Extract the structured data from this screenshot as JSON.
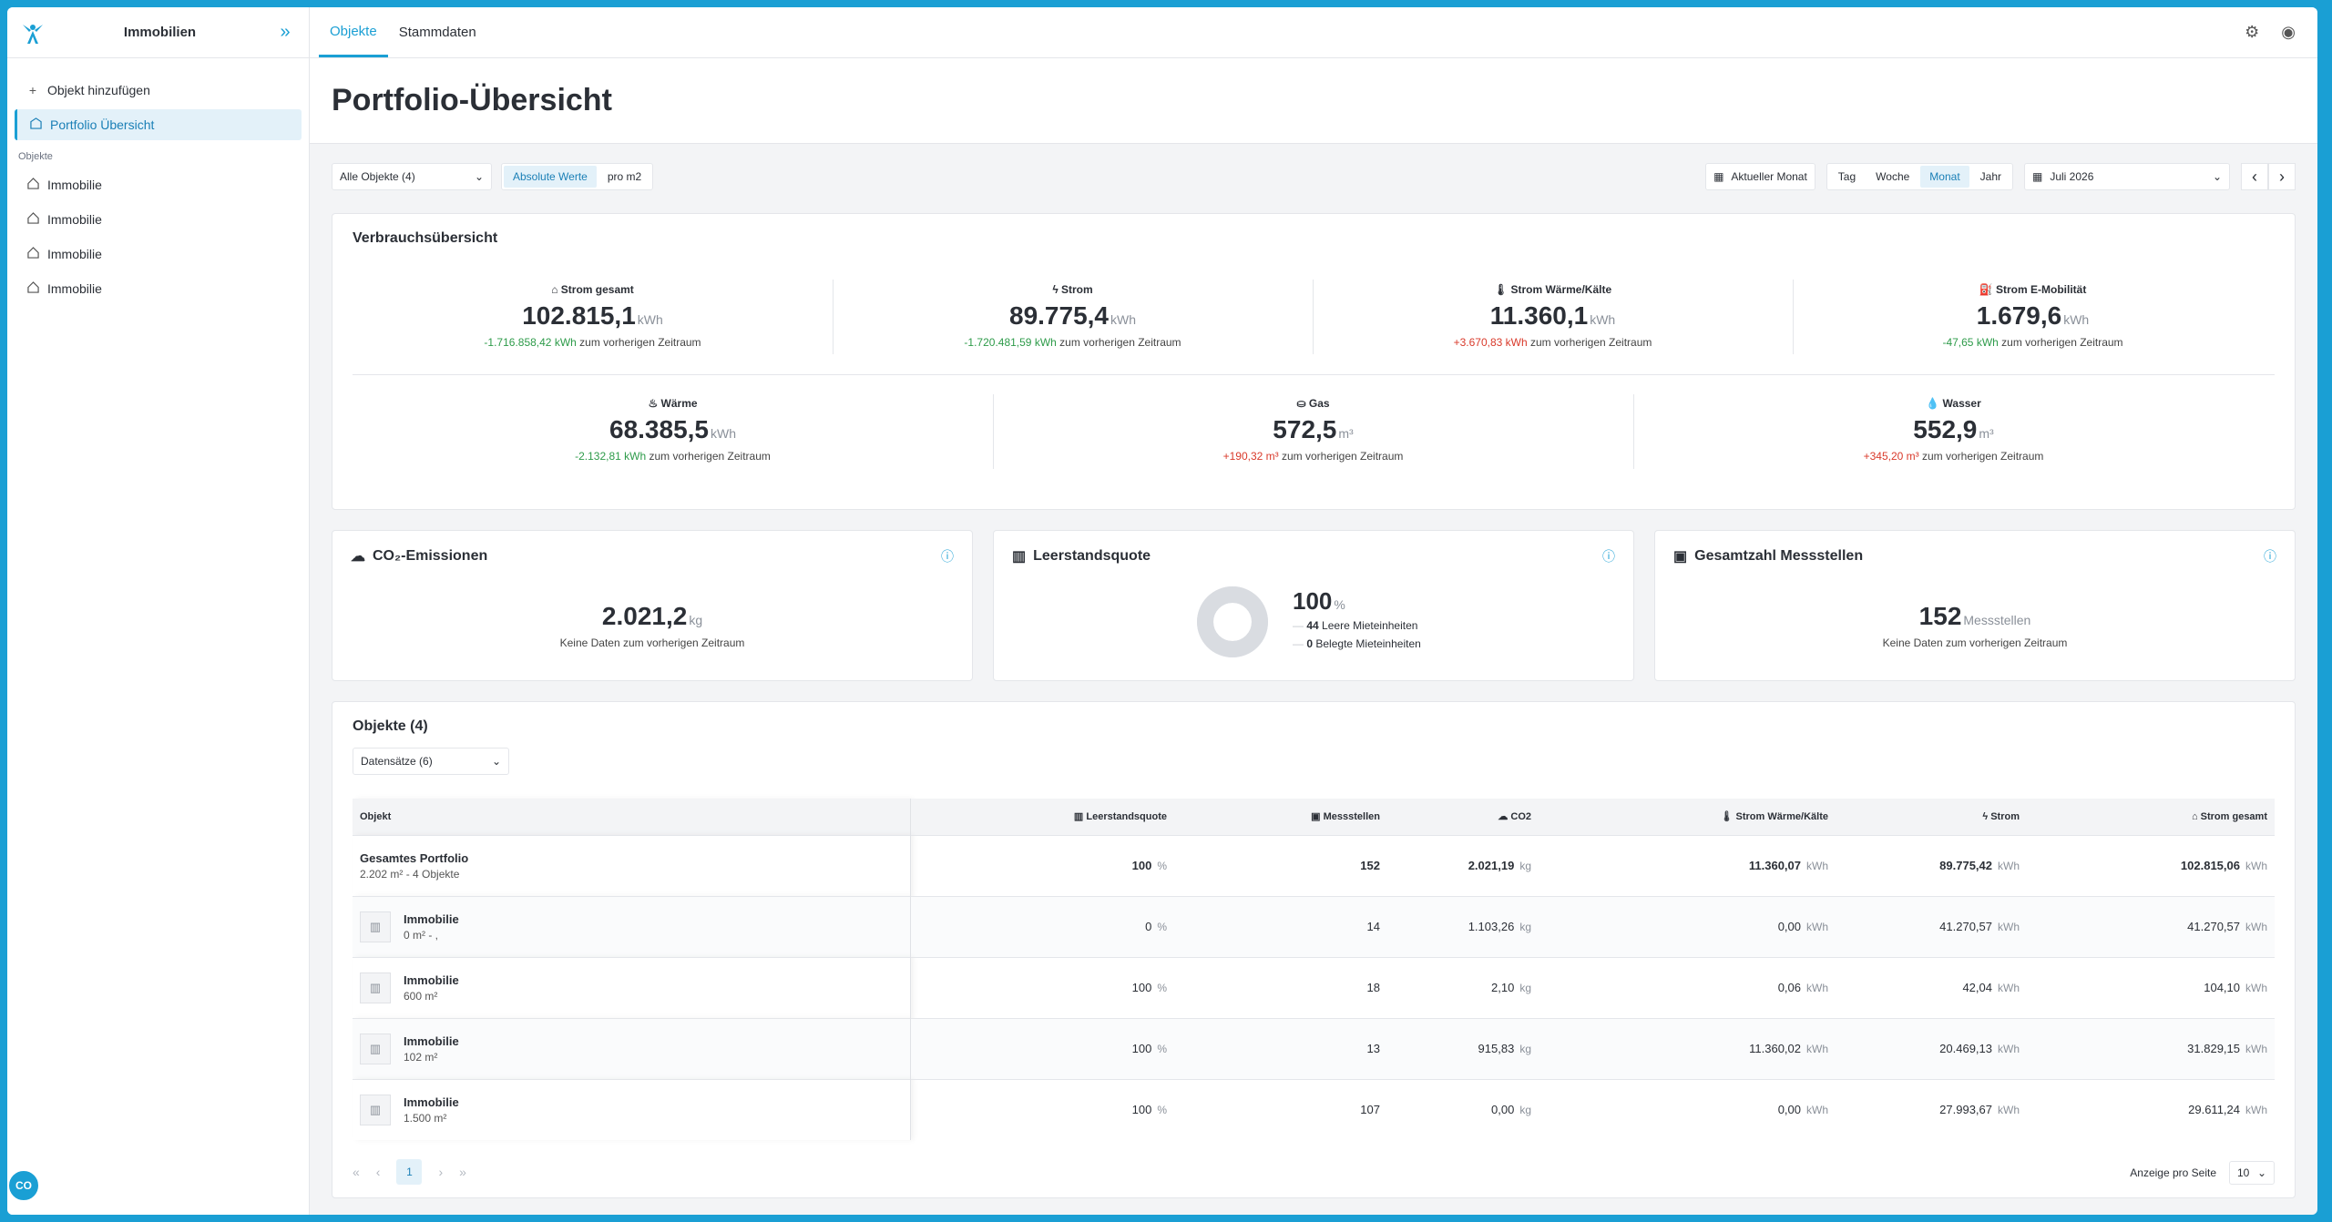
{
  "sidebar": {
    "title": "Immobilien",
    "add_label": "Objekt hinzufügen",
    "portfolio_label": "Portfolio Übersicht",
    "section_label": "Objekte",
    "items": [
      {
        "label": "Immobilie"
      },
      {
        "label": "Immobilie"
      },
      {
        "label": "Immobilie"
      },
      {
        "label": "Immobilie"
      }
    ],
    "fab_label": "CO"
  },
  "tabs": [
    {
      "label": "Objekte",
      "active": true
    },
    {
      "label": "Stammdaten",
      "active": false
    }
  ],
  "page": {
    "title": "Portfolio-Übersicht"
  },
  "filters": {
    "objects_select": "Alle Objekte (4)",
    "value_modes": [
      "Absolute Werte",
      "pro m2"
    ],
    "current_month_label": "Aktueller Monat",
    "periods": [
      "Tag",
      "Woche",
      "Monat",
      "Jahr"
    ],
    "active_period": "Monat",
    "date_select": "Juli 2026"
  },
  "consumption": {
    "title": "Verbrauchsübersicht",
    "delta_suffix": "zum vorherigen Zeitraum",
    "row1": [
      {
        "label": "Strom gesamt",
        "icon": "building-icon",
        "value": "102.815,1",
        "unit": "kWh",
        "delta": "-1.716.858,42 kWh",
        "trend": "neg"
      },
      {
        "label": "Strom",
        "icon": "bolt-icon",
        "value": "89.775,4",
        "unit": "kWh",
        "delta": "-1.720.481,59 kWh",
        "trend": "neg"
      },
      {
        "label": "Strom Wärme/Kälte",
        "icon": "thermometer-icon",
        "value": "11.360,1",
        "unit": "kWh",
        "delta": "+3.670,83 kWh",
        "trend": "pos"
      },
      {
        "label": "Strom E-Mobilität",
        "icon": "charging-icon",
        "value": "1.679,6",
        "unit": "kWh",
        "delta": "-47,65 kWh",
        "trend": "neg"
      }
    ],
    "row2": [
      {
        "label": "Wärme",
        "icon": "flame-icon",
        "value": "68.385,5",
        "unit": "kWh",
        "delta": "-2.132,81 kWh",
        "trend": "neg"
      },
      {
        "label": "Gas",
        "icon": "gas-icon",
        "value": "572,5",
        "unit": "m³",
        "delta": "+190,32 m³",
        "trend": "pos"
      },
      {
        "label": "Wasser",
        "icon": "drop-icon",
        "value": "552,9",
        "unit": "m³",
        "delta": "+345,20 m³",
        "trend": "pos"
      }
    ]
  },
  "co2": {
    "title": "CO₂-Emissionen",
    "value": "2.021,2",
    "unit": "kg",
    "note": "Keine Daten zum vorherigen Zeitraum"
  },
  "vacancy": {
    "title": "Leerstandsquote",
    "value": "100",
    "unit": "%",
    "vacant_count": "44",
    "vacant_label": "Leere Mieteinheiten",
    "occupied_count": "0",
    "occupied_label": "Belegte Mieteinheiten",
    "vacant_fraction": 1.0
  },
  "meters": {
    "title": "Gesamtzahl Messstellen",
    "value": "152",
    "unit": "Messstellen",
    "note": "Keine Daten zum vorherigen Zeitraum"
  },
  "objects": {
    "title": "Objekte (4)",
    "datasets_select": "Datensätze (6)",
    "columns": [
      "Objekt",
      "Leerstandsquote",
      "Messstellen",
      "CO2",
      "Strom Wärme/Kälte",
      "Strom",
      "Strom gesamt"
    ],
    "rows": [
      {
        "name": "Gesamtes Portfolio",
        "sub": "2.202 m² - 4 Objekte",
        "thumb": false,
        "vacancy": "100",
        "meters": "152",
        "co2": "2.021,19",
        "heat": "11.360,07",
        "power": "89.775,42",
        "total": "102.815,06"
      },
      {
        "name": "Immobilie",
        "sub": "0 m² - ,",
        "thumb": true,
        "vacancy": "0",
        "meters": "14",
        "co2": "1.103,26",
        "heat": "0,00",
        "power": "41.270,57",
        "total": "41.270,57"
      },
      {
        "name": "Immobilie",
        "sub": "600 m²",
        "thumb": true,
        "vacancy": "100",
        "meters": "18",
        "co2": "2,10",
        "heat": "0,06",
        "power": "42,04",
        "total": "104,10"
      },
      {
        "name": "Immobilie",
        "sub": "102 m²",
        "thumb": true,
        "vacancy": "100",
        "meters": "13",
        "co2": "915,83",
        "heat": "11.360,02",
        "power": "20.469,13",
        "total": "31.829,15"
      },
      {
        "name": "Immobilie",
        "sub": "1.500 m²",
        "thumb": true,
        "vacancy": "100",
        "meters": "107",
        "co2": "0,00",
        "heat": "0,00",
        "power": "27.993,67",
        "total": "29.611,24"
      }
    ],
    "units": {
      "vacancy": "%",
      "co2": "kg",
      "energy": "kWh"
    },
    "pagination": {
      "current_page": "1",
      "per_page_label": "Anzeige pro Seite",
      "per_page": "10"
    }
  }
}
